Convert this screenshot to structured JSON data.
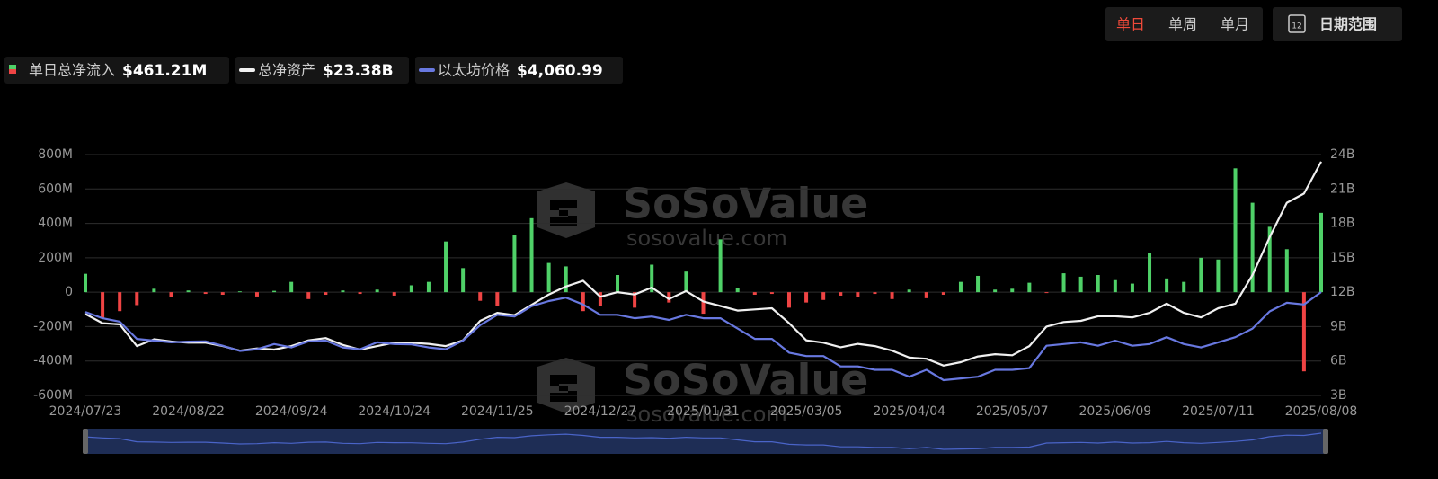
{
  "controls": {
    "periods": [
      "单日",
      "单周",
      "单月"
    ],
    "calendar_icon": "12",
    "date_range": "日期范围"
  },
  "watermark": {
    "brand": "SoSoValue",
    "url": "sosovalue.com"
  },
  "chart_data": {
    "type": "combo",
    "categories": [
      "2024/07/23",
      null,
      null,
      null,
      null,
      null,
      "2024/08/22",
      null,
      null,
      null,
      null,
      null,
      "2024/09/24",
      null,
      null,
      null,
      null,
      null,
      "2024/10/24",
      null,
      null,
      null,
      null,
      null,
      "2024/11/25",
      null,
      null,
      null,
      null,
      null,
      "2024/12/27",
      null,
      null,
      null,
      null,
      null,
      "2025/01/31",
      null,
      null,
      null,
      null,
      null,
      "2025/03/05",
      null,
      null,
      null,
      null,
      null,
      "2025/04/04",
      null,
      null,
      null,
      null,
      null,
      "2025/05/07",
      null,
      null,
      null,
      null,
      null,
      "2025/06/09",
      null,
      null,
      null,
      null,
      null,
      "2025/07/11",
      null,
      null,
      null,
      null,
      null,
      "2025/08/08"
    ],
    "series": [
      {
        "name": "单日总净流入",
        "type": "bar",
        "color": "#4fd168",
        "negative_color": "#ef4444",
        "summary": "$461.21M",
        "values": [
          107,
          -152,
          -110,
          -75,
          20,
          -30,
          10,
          -10,
          -15,
          5,
          -25,
          8,
          60,
          -40,
          -15,
          10,
          -10,
          15,
          -20,
          40,
          60,
          295,
          140,
          -50,
          -80,
          330,
          430,
          170,
          150,
          -110,
          -80,
          100,
          -90,
          160,
          -60,
          120,
          -125,
          307,
          25,
          -15,
          -10,
          -90,
          -60,
          -45,
          -20,
          -30,
          -10,
          -40,
          15,
          -35,
          -15,
          60,
          95,
          15,
          20,
          55,
          -5,
          110,
          90,
          100,
          70,
          50,
          230,
          80,
          60,
          200,
          190,
          720,
          520,
          380,
          250,
          -460,
          461.21
        ]
      },
      {
        "name": "总净资产",
        "type": "line",
        "axis": "y2",
        "color": "#f0f0f0",
        "summary": "$23.38B",
        "values": [
          10.1,
          9.3,
          9.2,
          7.3,
          7.9,
          7.7,
          7.6,
          7.6,
          7.3,
          6.9,
          7.1,
          7.0,
          7.3,
          7.8,
          8.0,
          7.4,
          7.0,
          7.3,
          7.6,
          7.6,
          7.5,
          7.3,
          7.8,
          9.5,
          10.2,
          10.0,
          10.9,
          11.8,
          12.5,
          13.0,
          11.6,
          12.0,
          11.8,
          12.4,
          11.4,
          12.1,
          11.2,
          10.8,
          10.4,
          10.5,
          10.6,
          9.3,
          7.8,
          7.6,
          7.2,
          7.5,
          7.3,
          6.9,
          6.3,
          6.2,
          5.6,
          5.9,
          6.4,
          6.6,
          6.5,
          7.3,
          9.0,
          9.4,
          9.5,
          9.9,
          9.9,
          9.8,
          10.2,
          11.0,
          10.2,
          9.8,
          10.6,
          11.0,
          13.5,
          16.8,
          19.8,
          20.6,
          23.38
        ]
      },
      {
        "name": "以太坊价格",
        "type": "line",
        "axis": "y3",
        "color": "#6878e0",
        "summary": "$4,060.99",
        "values": [
          3480,
          3300,
          3200,
          2700,
          2650,
          2600,
          2620,
          2630,
          2500,
          2350,
          2400,
          2550,
          2450,
          2630,
          2650,
          2450,
          2400,
          2600,
          2550,
          2540,
          2450,
          2400,
          2650,
          3100,
          3400,
          3350,
          3650,
          3800,
          3900,
          3700,
          3400,
          3400,
          3300,
          3350,
          3250,
          3400,
          3300,
          3300,
          3000,
          2700,
          2700,
          2300,
          2200,
          2200,
          1900,
          1900,
          1800,
          1800,
          1600,
          1800,
          1500,
          1550,
          1600,
          1800,
          1800,
          1850,
          2500,
          2550,
          2600,
          2500,
          2650,
          2500,
          2550,
          2750,
          2550,
          2450,
          2600,
          2750,
          3000,
          3500,
          3750,
          3700,
          4060.99
        ]
      }
    ],
    "ylim": [
      -600,
      800
    ],
    "yticks": [
      {
        "value": 800,
        "label": "800M"
      },
      {
        "value": 600,
        "label": "600M"
      },
      {
        "value": 400,
        "label": "400M"
      },
      {
        "value": 200,
        "label": "200M"
      },
      0,
      {
        "value": -200,
        "label": "-200M"
      },
      {
        "value": -400,
        "label": "-400M"
      },
      {
        "value": -600,
        "label": "-600M"
      }
    ],
    "y2lim": [
      3,
      24
    ],
    "y2ticks": [
      {
        "value": 24,
        "label": "24B"
      },
      {
        "value": 21,
        "label": "21B"
      },
      {
        "value": 18,
        "label": "18B"
      },
      {
        "value": 15,
        "label": "15B"
      },
      {
        "value": 12,
        "label": "12B"
      },
      {
        "value": 9,
        "label": "9B"
      },
      {
        "value": 6,
        "label": "6B"
      },
      {
        "value": 3,
        "label": "3B"
      }
    ],
    "grid": true
  }
}
